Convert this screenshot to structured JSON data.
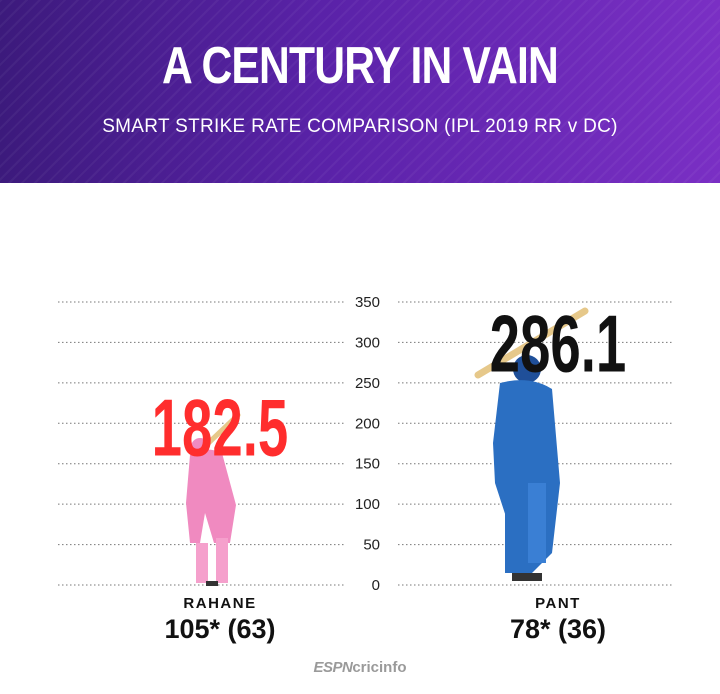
{
  "header": {
    "title": "A CENTURY IN VAIN",
    "subtitle": "SMART STRIKE RATE COMPARISON  (IPL 2019 RR v DC)"
  },
  "colors": {
    "header_start": "#3c1a7c",
    "header_end": "#7a2fc4",
    "rahane_value": "#ff2d2d",
    "pant_value": "#111111",
    "rahane_kit": "#f08ac0",
    "pant_kit": "#2b6fc2"
  },
  "chart_data": {
    "type": "bar",
    "title": "SMART STRIKE RATE COMPARISON  (IPL 2019 RR v DC)",
    "ylim": [
      0,
      350
    ],
    "yticks": [
      "0",
      "50",
      "100",
      "150",
      "200",
      "250",
      "300",
      "350"
    ],
    "grid": "dotted horizontal",
    "bars": [
      {
        "player": "RAHANE",
        "innings": "105* (63)",
        "value": 182.5,
        "label": "182.5",
        "color": "#ff2d2d"
      },
      {
        "player": "PANT",
        "innings": "78* (36)",
        "value": 286.1,
        "label": "286.1",
        "color": "#111111"
      }
    ]
  },
  "footer": {
    "brand_espn": "ESPN",
    "brand_cricinfo": "cricinfo"
  }
}
